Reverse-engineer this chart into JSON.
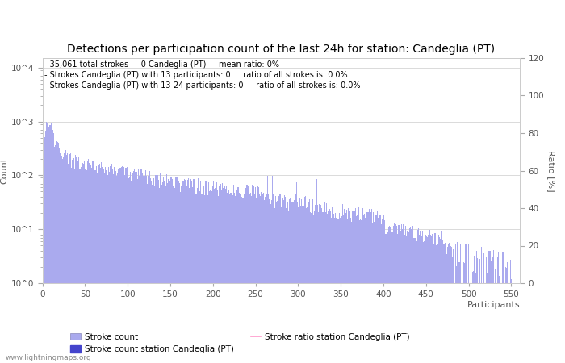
{
  "title": "Detections per participation count of the last 24h for station: Candeglia (PT)",
  "xlabel": "Participants",
  "ylabel_left": "Count",
  "ylabel_right": "Ratio [%]",
  "annotation_lines": [
    "- 35,061 total strokes     0 Candeglia (PT)     mean ratio: 0%",
    "- Strokes Candeglia (PT) with 13 participants: 0     ratio of all strokes is: 0.0%",
    "- Strokes Candeglia (PT) with 13-24 participants: 0     ratio of all strokes is: 0.0%"
  ],
  "xlim": [
    0,
    560
  ],
  "ylim_right": [
    0,
    120
  ],
  "yticks_right": [
    0,
    20,
    40,
    60,
    80,
    100,
    120
  ],
  "xticks": [
    0,
    50,
    100,
    150,
    200,
    250,
    300,
    350,
    400,
    450,
    500,
    550
  ],
  "bar_color": "#aaaaee",
  "station_bar_color": "#4444cc",
  "ratio_line_color": "#ff99cc",
  "watermark": "www.lightningmaps.org",
  "title_fontsize": 10,
  "annotation_fontsize": 7,
  "axis_fontsize": 8,
  "tick_fontsize": 7.5
}
